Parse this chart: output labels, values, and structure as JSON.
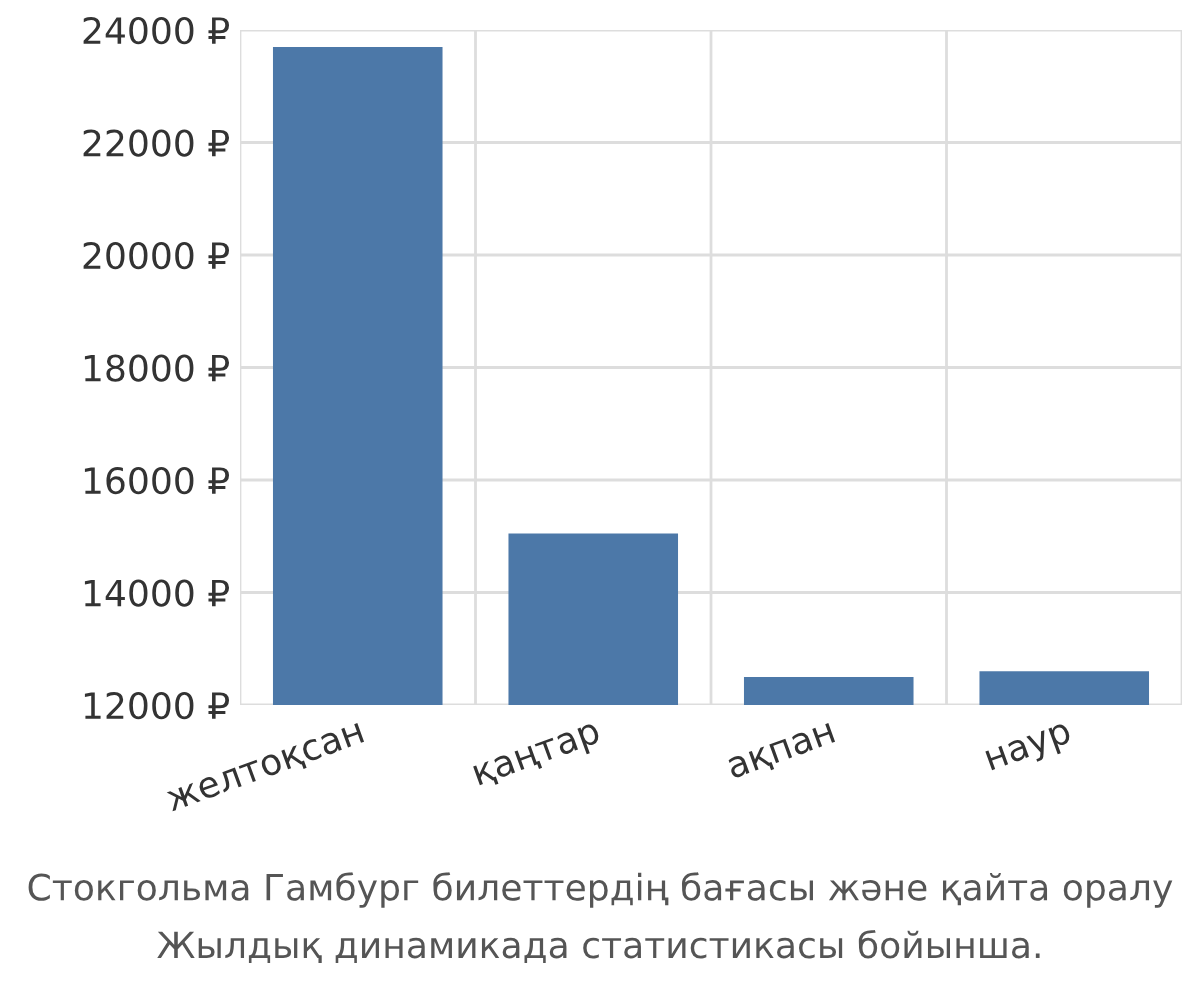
{
  "chart_data": {
    "type": "bar",
    "categories": [
      "желтоқсан",
      "қаңтар",
      "ақпан",
      "наур"
    ],
    "values": [
      23700,
      15050,
      12500,
      12600
    ],
    "color": "#4c78a8",
    "ylim": [
      12000,
      24000
    ],
    "yticks": [
      {
        "value": 12000,
        "label": "12000 ₽"
      },
      {
        "value": 14000,
        "label": "14000 ₽"
      },
      {
        "value": 16000,
        "label": "16000 ₽"
      },
      {
        "value": 18000,
        "label": "18000 ₽"
      },
      {
        "value": 20000,
        "label": "20000 ₽"
      },
      {
        "value": 22000,
        "label": "22000 ₽"
      },
      {
        "value": 24000,
        "label": "24000 ₽"
      }
    ],
    "grid": true,
    "annotations": [
      "Стокгольма Гамбург билеттердің бағасы және қайта оралу",
      "Жылдық динамикада статистикасы бойынша."
    ]
  }
}
